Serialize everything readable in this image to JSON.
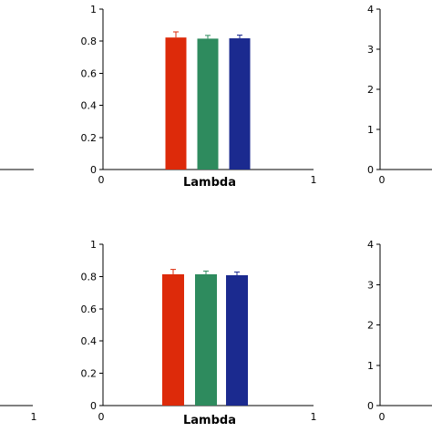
{
  "colors": {
    "red": "#dd2a0a",
    "green": "#2e8b5e",
    "blue": "#1b2a8f"
  },
  "chart_data": [
    {
      "type": "bar",
      "categories": [
        "",
        "",
        ""
      ],
      "values": [
        0.823,
        0.816,
        0.818
      ],
      "errors": [
        0.035,
        0.02,
        0.02
      ],
      "bar_colors": [
        "#dd2a0a",
        "#2e8b5e",
        "#1b2a8f"
      ],
      "xlabel": "Lambda",
      "ylim": [
        0,
        1
      ],
      "yticks": [
        "0",
        "0.2",
        "0.4",
        "0.6",
        "0.8",
        "1"
      ],
      "xticks": [
        "0",
        "1"
      ]
    },
    {
      "type": "bar",
      "categories": [
        "",
        "",
        ""
      ],
      "values": [
        0.814,
        0.814,
        0.808
      ],
      "errors": [
        0.03,
        0.02,
        0.02
      ],
      "bar_colors": [
        "#dd2a0a",
        "#2e8b5e",
        "#1b2a8f"
      ],
      "xlabel": "Lambda",
      "ylim": [
        0,
        1
      ],
      "yticks": [
        "0",
        "0.2",
        "0.4",
        "0.6",
        "0.8",
        "1"
      ],
      "xticks": [
        "0",
        "1"
      ]
    },
    {
      "type": "bar",
      "ylim": [
        0,
        4
      ],
      "yticks": [
        "0",
        "1",
        "2",
        "3",
        "4"
      ],
      "xticks": [
        "0"
      ]
    },
    {
      "type": "bar",
      "ylim": [
        0,
        4
      ],
      "yticks": [
        "0",
        "1",
        "2",
        "3",
        "4"
      ],
      "xticks": [
        "0"
      ]
    },
    {
      "type": "bar",
      "xticks": [
        "1"
      ]
    }
  ]
}
